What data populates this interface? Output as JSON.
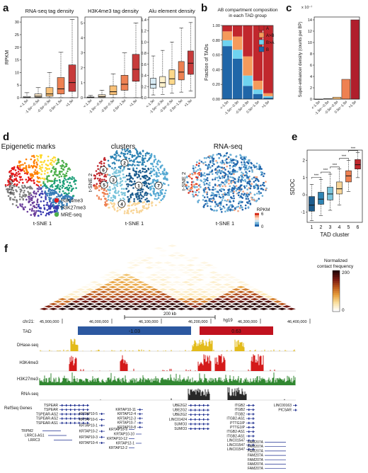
{
  "panels": {
    "a": {
      "label": "a",
      "ylabel": "RPKM",
      "categories": [
        "<-1.5σ",
        "-1.5σ~-0.5σ",
        "-0.5σ~0.5σ",
        "0.5σ~1.5σ",
        ">1.5σ"
      ],
      "charts": [
        {
          "title": "RNA-seq tag density",
          "yticks": [
            "0",
            "5",
            "10",
            "15",
            "20",
            "25",
            "30"
          ]
        },
        {
          "title": "H3K4me3 tag density",
          "yticks": [
            "0",
            "1",
            "2",
            "3",
            "4",
            "5"
          ]
        },
        {
          "title": "Alu element density",
          "yticks": [
            "0.0",
            "0.2",
            "0.4",
            "0.6",
            "0.8",
            "1.0",
            "1.2",
            "1.4"
          ]
        }
      ]
    },
    "b": {
      "label": "b",
      "title_line1": "AB compartment composition",
      "title_line2": "in each TAD group",
      "ylabel": "Fraction of TADs",
      "yticks": [
        "0.00",
        "0.20",
        "0.40",
        "0.60",
        "0.80",
        "1.00"
      ],
      "legend": [
        "A",
        "A>B",
        "B>A",
        "B"
      ]
    },
    "c": {
      "label": "c",
      "exponent": "x 10⁻⁷",
      "ylabel": "Super-enhancer density (counts per BP)",
      "yticks": [
        "0",
        "2",
        "4",
        "6",
        "8",
        "10",
        "12",
        "14"
      ]
    },
    "d": {
      "label": "d",
      "titles": [
        "Epigenetic marks",
        "clusters",
        "RNA-seq"
      ],
      "xlabel": "t-SNE 1",
      "ylabel": "t-SNE 2",
      "legend": [
        "H3K4me3",
        "H3K27me3",
        "MRE-seq"
      ],
      "cluster_labels": [
        "1",
        "2",
        "3",
        "4",
        "5",
        "6",
        "7"
      ],
      "colorbar_title": "RPKM",
      "colorbar_max": "6",
      "colorbar_min": "0"
    },
    "e": {
      "label": "e",
      "ylabel": "SDOC",
      "xlabel": "TAD cluster",
      "yticks": [
        "-1",
        "0",
        "1",
        "2"
      ],
      "categories": [
        "1",
        "2",
        "3",
        "4",
        "5",
        "6"
      ],
      "sig": "***"
    },
    "f": {
      "label": "f",
      "cb_title_line1": "Normalized",
      "cb_title_line2": "contact frequency",
      "cb_max": "200",
      "cb_min": "0",
      "scale_bar": "200 kb",
      "genome": "hg19",
      "chrom": "chr21:",
      "coords": [
        "45,900,000",
        "46,000,000",
        "46,100,000",
        "46,200,000",
        "46,300,000",
        "46,400,000"
      ],
      "tad_label": "TAD",
      "tad_values": [
        "-1.03",
        "0.63"
      ],
      "tracks": [
        "DHase-seq",
        "H3K4me3",
        "H3K27me3",
        "RNA-seq"
      ],
      "refseq_label": "RefSeq Genes",
      "genes_col1": [
        "TSPEAR",
        "TSPEAR",
        "TSPEAR-AS2",
        "TSPEAR-AS2",
        "TSPEAR-AS1",
        "TRPM2",
        "LRRC3-AS1",
        "LRRC3"
      ],
      "genes_col2": [
        "KRTAP10-5",
        "KRTAP10-6",
        "KRTAP10-1",
        "KRTAP10-2",
        "KRTAP10-3",
        "KRTAP10-4"
      ],
      "genes_col3": [
        "KRTAP10-11",
        "KRTAP12-4",
        "KRTAP12-3",
        "KRTAP10-7",
        "KRTAP10-8",
        "KRTAP10-9",
        "KRTAP10-10",
        "KRTAP10-12",
        "KRTAP12-1",
        "KRTAP12-2"
      ],
      "genes_col4": [
        "UBE2G2",
        "UBE2G2",
        "UBE2G2",
        "LINC01424",
        "SUMO3",
        "SUMO3"
      ],
      "genes_col5": [
        "ITGB2",
        "ITGB2",
        "ITGB2",
        "ITGB2-AS1",
        "PTTG1IP",
        "PTTG1IP",
        "ITGB2-AS1",
        "ITGB2-AS1",
        "LINC01547",
        "LINC01547",
        "LINC01547"
      ],
      "genes_col6": [
        "LINC00163",
        "PICSAR",
        "FAM207A",
        "FAM207A",
        "FAM207A",
        "FAM207A",
        "FAM207A",
        "FAM207A",
        "FAM207A"
      ]
    }
  },
  "chart_data": [
    {
      "type": "box",
      "title": "RNA-seq tag density",
      "ylabel": "RPKM",
      "ylim": [
        0,
        32
      ],
      "categories": [
        "<-1.5σ",
        "-1.5σ~-0.5σ",
        "-0.5σ~0.5σ",
        "0.5σ~1.5σ",
        ">1.5σ"
      ],
      "boxes": [
        {
          "q1": 0.0,
          "median": 0.1,
          "q3": 0.5,
          "whislo": 0,
          "whishi": 2
        },
        {
          "q1": 0.2,
          "median": 0.6,
          "q3": 1.5,
          "whislo": 0,
          "whishi": 4
        },
        {
          "q1": 0.6,
          "median": 1.5,
          "q3": 4.0,
          "whislo": 0,
          "whishi": 10
        },
        {
          "q1": 1.5,
          "median": 3.5,
          "q3": 8.0,
          "whislo": 0,
          "whishi": 18
        },
        {
          "q1": 2.5,
          "median": 6.0,
          "q3": 13.0,
          "whislo": 0,
          "whishi": 31
        }
      ],
      "colors": [
        "#ffffff",
        "#fde9c8",
        "#f9c178",
        "#ee8152",
        "#c73a3a"
      ]
    },
    {
      "type": "box",
      "title": "H3K4me3 tag density",
      "ylabel": "RPKM",
      "ylim": [
        0,
        5.4
      ],
      "categories": [
        "<-1.5σ",
        "-1.5σ~-0.5σ",
        "-0.5σ~0.5σ",
        "0.5σ~1.5σ",
        ">1.5σ"
      ],
      "boxes": [
        {
          "q1": 0.0,
          "median": 0.02,
          "q3": 0.05,
          "whislo": 0,
          "whishi": 0.15
        },
        {
          "q1": 0.02,
          "median": 0.08,
          "q3": 0.2,
          "whislo": 0,
          "whishi": 0.5
        },
        {
          "q1": 0.2,
          "median": 0.4,
          "q3": 0.8,
          "whislo": 0,
          "whishi": 1.6
        },
        {
          "q1": 0.5,
          "median": 0.9,
          "q3": 1.5,
          "whislo": 0,
          "whishi": 3.0
        },
        {
          "q1": 1.1,
          "median": 1.9,
          "q3": 2.9,
          "whislo": 0,
          "whishi": 5.0
        }
      ],
      "colors": [
        "#ffffff",
        "#fde9c8",
        "#f9c178",
        "#ee8152",
        "#c73a3a"
      ]
    },
    {
      "type": "box",
      "title": "Alu element density",
      "ylabel": "RPKM",
      "ylim": [
        0,
        1.45
      ],
      "categories": [
        "<-1.5σ",
        "-1.5σ~-0.5σ",
        "-0.5σ~0.5σ",
        "0.5σ~1.5σ",
        ">1.5σ"
      ],
      "boxes": [
        {
          "q1": 0.17,
          "median": 0.24,
          "q3": 0.35,
          "whislo": 0.05,
          "whishi": 0.75
        },
        {
          "q1": 0.19,
          "median": 0.27,
          "q3": 0.38,
          "whislo": 0.06,
          "whishi": 0.85
        },
        {
          "q1": 0.24,
          "median": 0.34,
          "q3": 0.5,
          "whislo": 0.08,
          "whishi": 1.0
        },
        {
          "q1": 0.32,
          "median": 0.46,
          "q3": 0.65,
          "whislo": 0.1,
          "whishi": 1.25
        },
        {
          "q1": 0.42,
          "median": 0.62,
          "q3": 0.84,
          "whislo": 0.12,
          "whishi": 1.35
        }
      ],
      "colors": [
        "#d8ebf5",
        "#fff2cc",
        "#fcd88a",
        "#ee8152",
        "#c73a3a"
      ]
    },
    {
      "type": "bar",
      "stacked": true,
      "title": "AB compartment composition in each TAD group",
      "ylabel": "Fraction of TADs",
      "ylim": [
        0,
        1
      ],
      "categories": [
        "<-1.5σ",
        "-1.5σ~-0.5σ",
        "-0.5σ~0.5σ",
        "0.5σ~1.5σ",
        ">1.5σ"
      ],
      "series": [
        {
          "name": "B",
          "values": [
            0.72,
            0.55,
            0.18,
            0.07,
            0.02
          ],
          "color": "#2066a8"
        },
        {
          "name": "B>A",
          "values": [
            0.08,
            0.12,
            0.14,
            0.06,
            0.02
          ],
          "color": "#6fd3f0"
        },
        {
          "name": "A>B",
          "values": [
            0.12,
            0.18,
            0.26,
            0.12,
            0.04
          ],
          "color": "#f59a5b"
        },
        {
          "name": "A",
          "values": [
            0.08,
            0.15,
            0.42,
            0.75,
            0.92
          ],
          "color": "#c1272d"
        }
      ]
    },
    {
      "type": "bar",
      "title": "",
      "ylabel": "Super-enhancer density (counts per BP)",
      "ylim": [
        0,
        14.5
      ],
      "categories": [
        "<-1.5σ",
        "-1.5σ~-0.5σ",
        "-0.5σ~0.5σ",
        "0.5σ~1.5σ",
        ">1.5σ"
      ],
      "values": [
        0.0,
        0.1,
        0.35,
        3.5,
        14.0
      ],
      "colors": [
        "#ffffff",
        "#fde9c8",
        "#f9c178",
        "#ee8152",
        "#b01e2c"
      ]
    },
    {
      "type": "box",
      "title": "",
      "ylabel": "SDOC",
      "xlabel": "TAD cluster",
      "ylim": [
        -1.6,
        2.6
      ],
      "categories": [
        "1",
        "2",
        "3",
        "4",
        "5",
        "6"
      ],
      "boxes": [
        {
          "q1": -0.95,
          "median": -0.6,
          "q3": -0.1,
          "whislo": -1.5,
          "whishi": 0.6
        },
        {
          "q1": -0.55,
          "median": -0.25,
          "q3": 0.15,
          "whislo": -1.2,
          "whishi": 0.9
        },
        {
          "q1": -0.3,
          "median": 0.05,
          "q3": 0.45,
          "whislo": -0.9,
          "whishi": 1.2
        },
        {
          "q1": 0.05,
          "median": 0.35,
          "q3": 0.75,
          "whislo": -0.6,
          "whishi": 1.5
        },
        {
          "q1": 0.75,
          "median": 1.1,
          "q3": 1.4,
          "whislo": 0.2,
          "whishi": 2.0
        },
        {
          "q1": 1.5,
          "median": 1.75,
          "q3": 2.05,
          "whislo": 1.0,
          "whishi": 2.45
        }
      ],
      "colors": [
        "#1c5c8e",
        "#2f84b4",
        "#7bc4db",
        "#f8d598",
        "#ee8152",
        "#c1272d"
      ]
    }
  ]
}
